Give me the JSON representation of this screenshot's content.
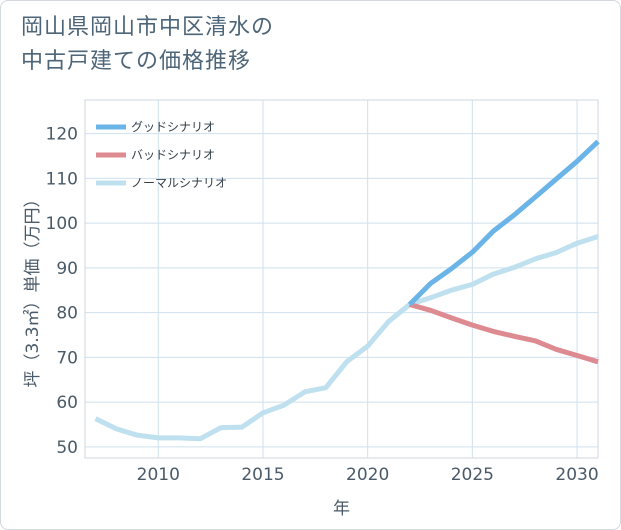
{
  "title": {
    "line1": "岡山県岡山市中区清水の",
    "line2": "中古戸建ての価格推移"
  },
  "colors": {
    "good": "#6bb4e8",
    "bad": "#de8a91",
    "normal": "#bfe0ef",
    "grid": "#cfe1ee",
    "text": "#4a5a68",
    "title": "#4d6578"
  },
  "chart_data": {
    "type": "line",
    "xlabel": "年",
    "ylabel": "坪（3.3㎡）単価（万円）",
    "xlim": [
      2006.5,
      2031
    ],
    "ylim": [
      47.5,
      127.5
    ],
    "x_ticks": [
      2010,
      2015,
      2020,
      2025,
      2030
    ],
    "y_ticks": [
      50,
      60,
      70,
      80,
      90,
      100,
      110,
      120
    ],
    "grid": true,
    "legend_position": "top-left",
    "legend": [
      {
        "label": "グッドシナリオ",
        "color": "#6bb4e8"
      },
      {
        "label": "バッドシナリオ",
        "color": "#de8a91"
      },
      {
        "label": "ノーマルシナリオ",
        "color": "#bfe0ef"
      }
    ],
    "series": [
      {
        "name": "グッドシナリオ",
        "color": "#6bb4e8",
        "x": [
          2022,
          2023,
          2024,
          2025,
          2026,
          2027,
          2028,
          2029,
          2030,
          2031
        ],
        "y": [
          81.8,
          86.5,
          89.8,
          93.5,
          98.2,
          101.8,
          105.8,
          109.8,
          113.8,
          118.2
        ]
      },
      {
        "name": "バッドシナリオ",
        "color": "#de8a91",
        "x": [
          2022,
          2023,
          2024,
          2025,
          2026,
          2027,
          2028,
          2029,
          2030,
          2031
        ],
        "y": [
          81.8,
          80.5,
          78.8,
          77.2,
          75.8,
          74.7,
          73.7,
          71.8,
          70.4,
          69.0
        ]
      },
      {
        "name": "ノーマルシナリオ",
        "color": "#bfe0ef",
        "x": [
          2007,
          2008,
          2009,
          2010,
          2011,
          2012,
          2013,
          2014,
          2015,
          2016,
          2017,
          2018,
          2019,
          2020,
          2021,
          2022,
          2023,
          2024,
          2025,
          2026,
          2027,
          2028,
          2029,
          2030,
          2031
        ],
        "y": [
          56.3,
          54.0,
          52.6,
          52.0,
          52.0,
          51.8,
          54.3,
          54.4,
          57.6,
          59.3,
          62.3,
          63.2,
          69.0,
          72.5,
          78.0,
          81.8,
          83.3,
          85.0,
          86.3,
          88.6,
          90.1,
          92.0,
          93.4,
          95.5,
          97.0
        ]
      }
    ]
  }
}
